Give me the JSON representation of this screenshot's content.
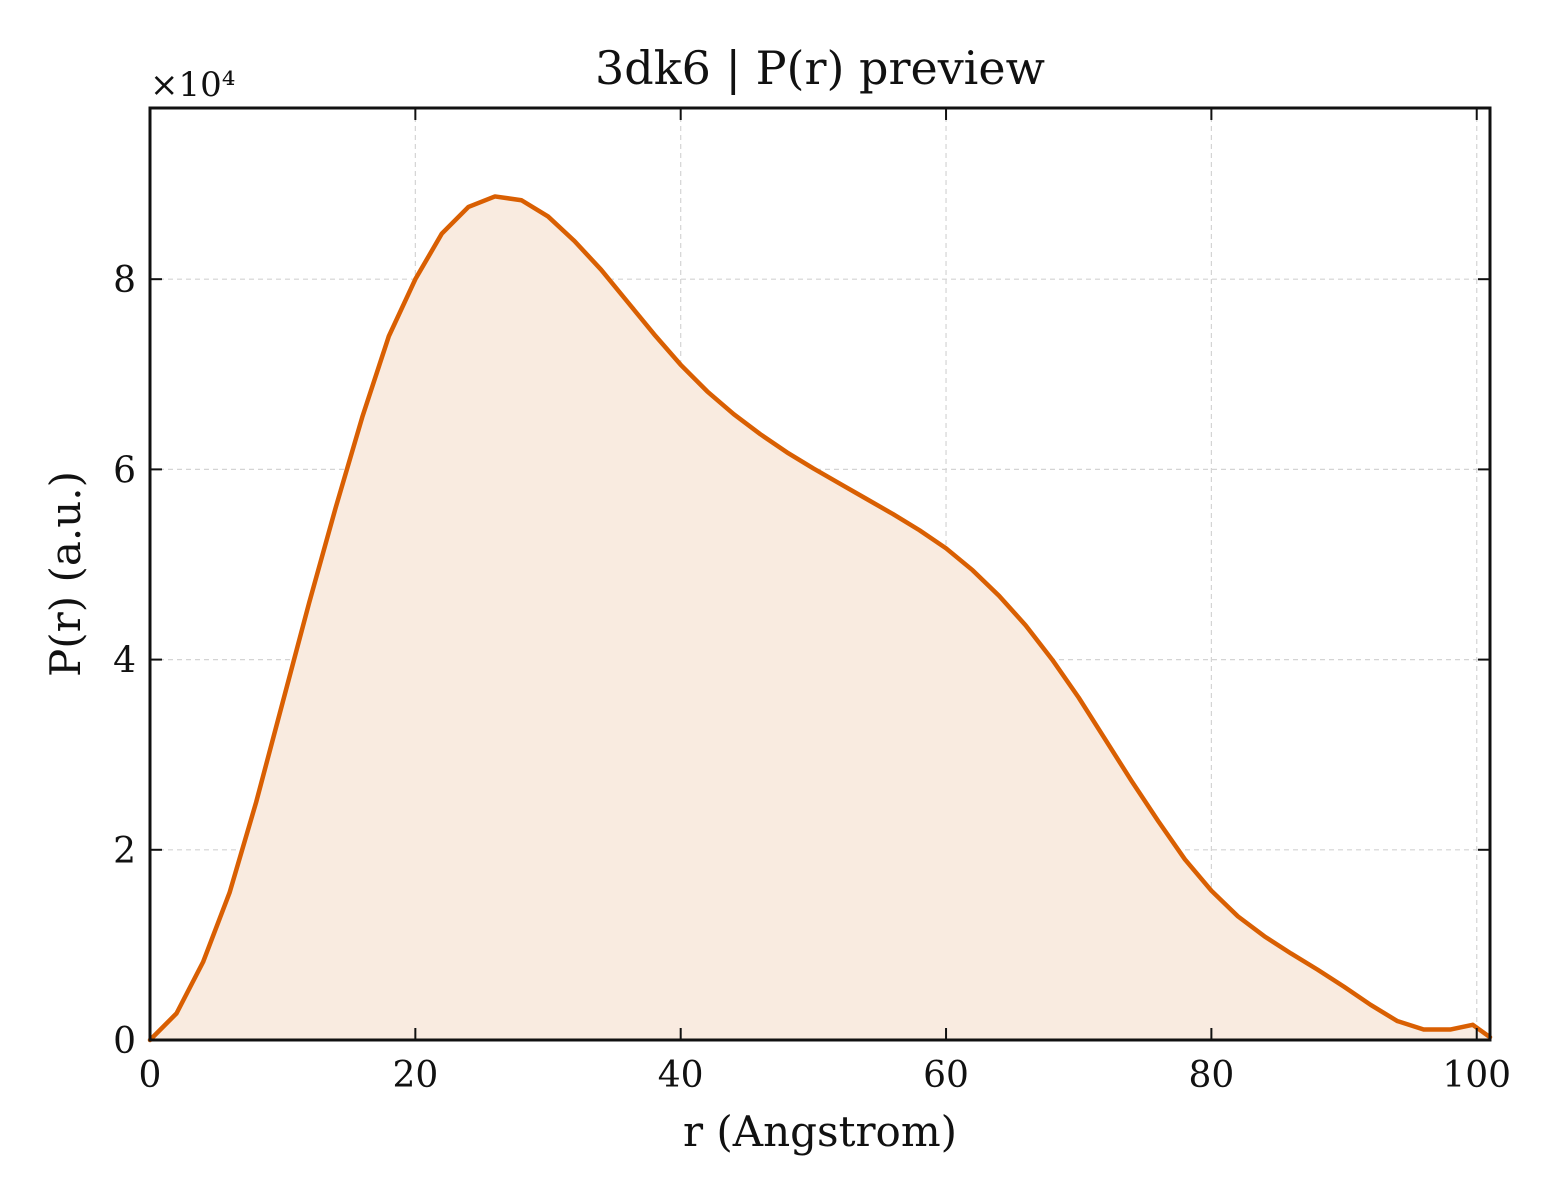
{
  "chart_data": {
    "type": "area",
    "title": "3dk6 | P(r) preview",
    "xlabel": "r (Angstrom)",
    "ylabel": "P(r) (a.u.)",
    "y_multiplier_label": "×10⁴",
    "xlim": [
      0,
      101
    ],
    "ylim": [
      0,
      9.8
    ],
    "xticks": [
      0,
      20,
      40,
      60,
      80,
      100
    ],
    "yticks": [
      0,
      2,
      4,
      6,
      8
    ],
    "grid": true,
    "line_color": "#d95f02",
    "fill_color": "#f9ebe0",
    "series": [
      {
        "x": [
          0,
          2,
          4,
          6,
          8,
          10,
          12,
          14,
          16,
          18,
          20,
          22,
          24,
          26,
          28,
          30,
          32,
          34,
          36,
          38,
          40,
          42,
          44,
          46,
          48,
          50,
          52,
          54,
          56,
          58,
          60,
          62,
          64,
          66,
          68,
          70,
          72,
          74,
          76,
          78,
          80,
          82,
          84,
          86,
          88,
          90,
          92,
          94,
          96,
          98,
          99.7,
          101
        ],
        "y": [
          0.0,
          0.28,
          0.82,
          1.55,
          2.5,
          3.55,
          4.6,
          5.6,
          6.55,
          7.4,
          8.0,
          8.48,
          8.76,
          8.87,
          8.83,
          8.66,
          8.4,
          8.1,
          7.76,
          7.42,
          7.1,
          6.82,
          6.58,
          6.37,
          6.18,
          6.01,
          5.85,
          5.69,
          5.53,
          5.36,
          5.17,
          4.94,
          4.67,
          4.36,
          4.0,
          3.6,
          3.16,
          2.72,
          2.3,
          1.9,
          1.57,
          1.3,
          1.09,
          0.91,
          0.74,
          0.56,
          0.37,
          0.2,
          0.11,
          0.11,
          0.16,
          0.03
        ]
      }
    ]
  }
}
